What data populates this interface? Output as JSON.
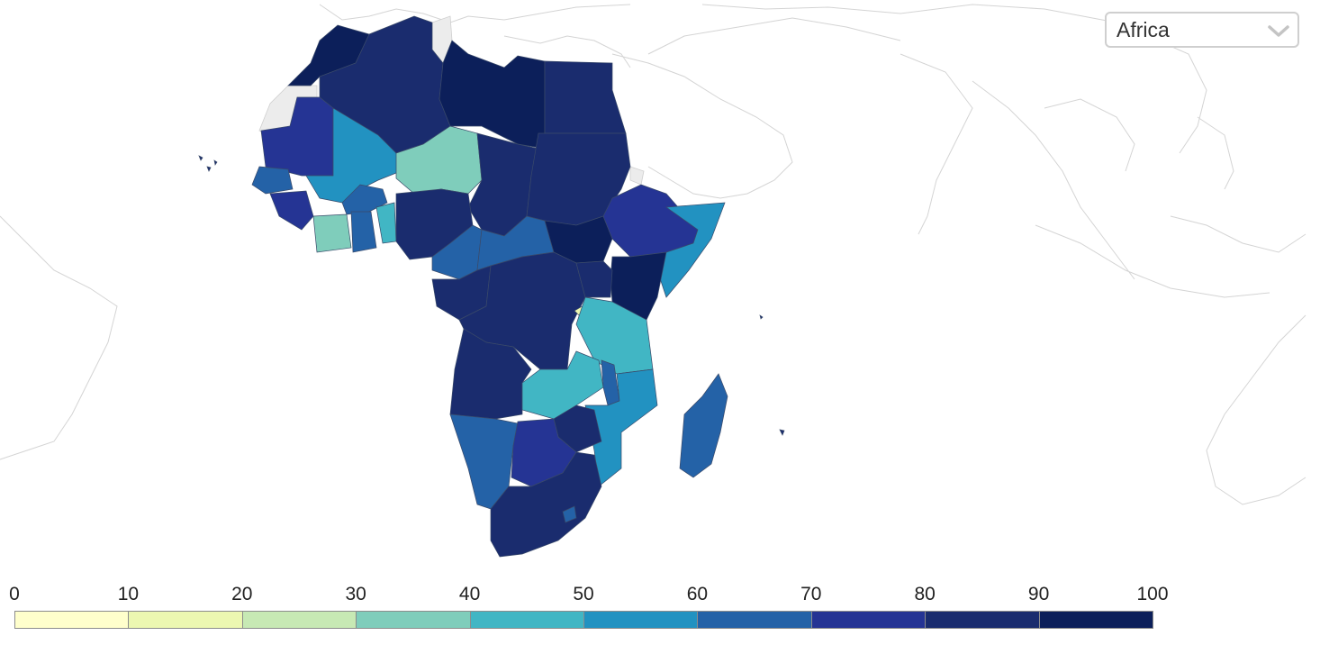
{
  "region_selector": {
    "selected": "Africa"
  },
  "legend": {
    "ticks": [
      "0",
      "10",
      "20",
      "30",
      "40",
      "50",
      "60",
      "70",
      "80",
      "90",
      "100"
    ],
    "bins": [
      {
        "from": 0,
        "to": 10,
        "color": "#ffffcc"
      },
      {
        "from": 10,
        "to": 20,
        "color": "#ecf7b1"
      },
      {
        "from": 20,
        "to": 30,
        "color": "#c7e9b4"
      },
      {
        "from": 30,
        "to": 40,
        "color": "#7fcdbb"
      },
      {
        "from": 40,
        "to": 50,
        "color": "#41b6c4"
      },
      {
        "from": 50,
        "to": 60,
        "color": "#2292c1"
      },
      {
        "from": 60,
        "to": 70,
        "color": "#2462a7"
      },
      {
        "from": 70,
        "to": 80,
        "color": "#253494"
      },
      {
        "from": 80,
        "to": 90,
        "color": "#1a2c6e"
      },
      {
        "from": 90,
        "to": 100,
        "color": "#0c1f5a"
      }
    ]
  },
  "colors": {
    "no_data": "#ececec",
    "outline": "#d4d4d4"
  }
}
